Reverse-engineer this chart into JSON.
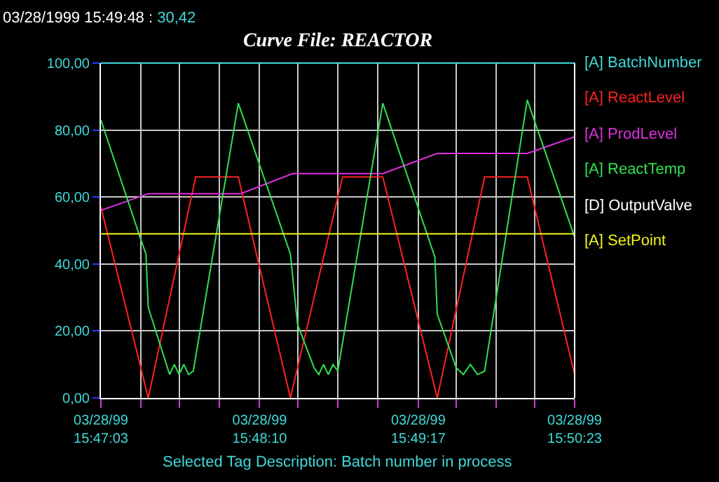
{
  "chart_data": {
    "type": "line",
    "title": "Curve File: REACTOR",
    "annotations": [
      "03/28/1999 15:49:48 :",
      "30,42",
      "Selected Tag Description: Batch number in process"
    ],
    "xlim": [
      "1999-03-28T15:47:03",
      "1999-03-28T15:50:23"
    ],
    "xticks": [
      {
        "value": "1999-03-28T15:47:03",
        "label": "03/28/99\n15:47:03"
      },
      {
        "value": "1999-03-28T15:47:20",
        "label": null
      },
      {
        "value": "1999-03-28T15:47:36",
        "label": null
      },
      {
        "value": "1999-03-28T15:47:53",
        "label": null
      },
      {
        "value": "1999-03-28T15:48:10",
        "label": "03/28/99\n15:48:10"
      },
      {
        "value": "1999-03-28T15:48:26",
        "label": null
      },
      {
        "value": "1999-03-28T15:48:43",
        "label": null
      },
      {
        "value": "1999-03-28T15:49:00",
        "label": null
      },
      {
        "value": "1999-03-28T15:49:17",
        "label": "03/28/99\n15:49:17"
      },
      {
        "value": "1999-03-28T15:49:33",
        "label": null
      },
      {
        "value": "1999-03-28T15:49:50",
        "label": null
      },
      {
        "value": "1999-03-28T15:50:06",
        "label": null
      },
      {
        "value": "1999-03-28T15:50:23",
        "label": "03/28/99\n15:50:23"
      }
    ],
    "ylim": [
      0,
      100
    ],
    "yticks": [
      {
        "value": 0,
        "label": "0,00"
      },
      {
        "value": 20,
        "label": "20,00"
      },
      {
        "value": 40,
        "label": "40,00"
      },
      {
        "value": 60,
        "label": "60,00"
      },
      {
        "value": 80,
        "label": "80,00"
      },
      {
        "value": 100,
        "label": "100,00"
      }
    ],
    "grid": true,
    "legend": "right",
    "marker": "none",
    "line_style": "solid",
    "series": [
      {
        "name": "[A] BatchNumber",
        "color": "#40d8d8"
      },
      {
        "name": "[A] ReactLevel",
        "color": "#ff2020",
        "x": [
          "1999-03-28T15:47:03",
          "1999-03-28T15:47:23",
          "1999-03-28T15:47:43",
          "1999-03-28T15:48:01",
          "1999-03-28T15:48:23",
          "1999-03-28T15:48:45",
          "1999-03-28T15:49:02",
          "1999-03-28T15:49:25",
          "1999-03-28T15:49:45",
          "1999-03-28T15:50:03",
          "1999-03-28T15:50:23"
        ],
        "values": [
          57,
          0,
          66,
          66,
          0,
          66,
          66,
          0,
          66,
          66,
          7
        ]
      },
      {
        "name": "[A] ProdLevel",
        "color": "#e030e0",
        "x": [
          "1999-03-28T15:47:03",
          "1999-03-28T15:47:23",
          "1999-03-28T15:48:02",
          "1999-03-28T15:48:24",
          "1999-03-28T15:49:02",
          "1999-03-28T15:49:25",
          "1999-03-28T15:50:03",
          "1999-03-28T15:50:23"
        ],
        "values": [
          56,
          61,
          61,
          67,
          67,
          73,
          73,
          78
        ]
      },
      {
        "name": "[A] ReactTemp",
        "color": "#30e050",
        "x": [
          "1999-03-28T15:47:03",
          "1999-03-28T15:47:20",
          "1999-03-28T15:47:22",
          "1999-03-28T15:47:23",
          "1999-03-28T15:47:32",
          "1999-03-28T15:47:34",
          "1999-03-28T15:47:36",
          "1999-03-28T15:47:38",
          "1999-03-28T15:47:40",
          "1999-03-28T15:47:42",
          "1999-03-28T15:48:01",
          "1999-03-28T15:48:23",
          "1999-03-28T15:48:26",
          "1999-03-28T15:48:33",
          "1999-03-28T15:48:35",
          "1999-03-28T15:48:37",
          "1999-03-28T15:48:39",
          "1999-03-28T15:48:41",
          "1999-03-28T15:48:43",
          "1999-03-28T15:49:02",
          "1999-03-28T15:49:24",
          "1999-03-28T15:49:25",
          "1999-03-28T15:49:33",
          "1999-03-28T15:49:36",
          "1999-03-28T15:49:39",
          "1999-03-28T15:49:42",
          "1999-03-28T15:49:45",
          "1999-03-28T15:50:03",
          "1999-03-28T15:50:23"
        ],
        "values": [
          83,
          47,
          43,
          27,
          7,
          10,
          7,
          10,
          7,
          8,
          88,
          43,
          22,
          9,
          7,
          10,
          7,
          10,
          8,
          88,
          42,
          25,
          9,
          7,
          10,
          7,
          8,
          89,
          48
        ]
      },
      {
        "name": "[D] OutputValve",
        "color": "#ffffff"
      },
      {
        "name": "[A] SetPoint",
        "color": "#f0f020",
        "x": [
          "1999-03-28T15:47:03",
          "1999-03-28T15:50:23"
        ],
        "values": [
          49,
          49
        ]
      }
    ]
  }
}
